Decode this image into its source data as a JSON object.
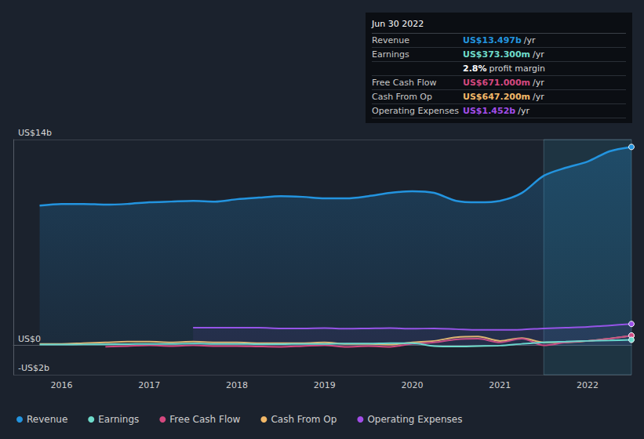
{
  "chart_data": {
    "type": "line",
    "xlim": [
      2015.45,
      2022.5
    ],
    "xticks": [
      2016,
      2017,
      2018,
      2019,
      2020,
      2021,
      2022
    ],
    "ylim": [
      -2,
      14
    ],
    "yticks": [
      {
        "value": -2,
        "label": "-US$2b"
      },
      {
        "value": 0,
        "label": "US$0"
      },
      {
        "value": 14,
        "label": "US$14b"
      }
    ],
    "grid": true,
    "legend": "lower left",
    "highlight_range": [
      2021.5,
      2022.5
    ],
    "series": [
      {
        "name": "Revenue",
        "color": "#2394df",
        "x": [
          2015.75,
          2016.0,
          2016.25,
          2016.5,
          2016.75,
          2017.0,
          2017.25,
          2017.5,
          2017.75,
          2018.0,
          2018.25,
          2018.5,
          2018.75,
          2019.0,
          2019.25,
          2019.5,
          2019.75,
          2020.0,
          2020.25,
          2020.5,
          2020.75,
          2021.0,
          2021.25,
          2021.5,
          2021.75,
          2022.0,
          2022.25,
          2022.5
        ],
        "values": [
          9.51,
          9.62,
          9.62,
          9.57,
          9.62,
          9.73,
          9.78,
          9.83,
          9.78,
          9.94,
          10.05,
          10.15,
          10.1,
          10.0,
          10.0,
          10.15,
          10.37,
          10.48,
          10.37,
          9.83,
          9.73,
          9.83,
          10.37,
          11.54,
          12.08,
          12.5,
          13.2,
          13.497
        ]
      },
      {
        "name": "Earnings",
        "color": "#6fdccb",
        "x": [
          2015.75,
          2016.0,
          2016.25,
          2016.5,
          2016.75,
          2017.0,
          2017.25,
          2017.5,
          2017.75,
          2018.0,
          2018.25,
          2018.5,
          2018.75,
          2019.0,
          2019.25,
          2019.5,
          2019.75,
          2020.0,
          2020.25,
          2020.5,
          2020.75,
          2021.0,
          2021.25,
          2021.5,
          2021.75,
          2022.0,
          2022.25,
          2022.5
        ],
        "values": [
          0.05,
          0.05,
          0.06,
          0.07,
          0.08,
          0.1,
          0.1,
          0.12,
          0.1,
          0.1,
          0.08,
          0.08,
          0.1,
          0.1,
          0.12,
          0.12,
          0.15,
          0.15,
          -0.05,
          -0.08,
          -0.05,
          -0.02,
          0.1,
          0.2,
          0.25,
          0.3,
          0.33,
          0.3733
        ]
      },
      {
        "name": "Free Cash Flow",
        "color": "#d4487f",
        "x": [
          2016.5,
          2016.75,
          2017.0,
          2017.25,
          2017.5,
          2017.75,
          2018.0,
          2018.25,
          2018.5,
          2018.75,
          2019.0,
          2019.25,
          2019.5,
          2019.75,
          2020.0,
          2020.25,
          2020.5,
          2020.75,
          2021.0,
          2021.25,
          2021.5,
          2021.75,
          2022.0,
          2022.25,
          2022.5
        ],
        "values": [
          -0.1,
          -0.05,
          0.0,
          -0.05,
          0.0,
          -0.05,
          -0.05,
          -0.08,
          -0.1,
          -0.05,
          0.0,
          -0.1,
          -0.05,
          -0.1,
          0.1,
          0.2,
          0.4,
          0.45,
          0.2,
          0.45,
          0.0,
          0.2,
          0.3,
          0.45,
          0.671
        ]
      },
      {
        "name": "Cash From Op",
        "color": "#f2b868",
        "x": [
          2015.75,
          2016.0,
          2016.25,
          2016.5,
          2016.75,
          2017.0,
          2017.25,
          2017.5,
          2017.75,
          2018.0,
          2018.25,
          2018.5,
          2018.75,
          2019.0,
          2019.25,
          2019.5,
          2019.75,
          2020.0,
          2020.25,
          2020.5,
          2020.75,
          2021.0,
          2021.25,
          2021.5,
          2021.75,
          2022.0,
          2022.25,
          2022.5
        ],
        "values": [
          0.1,
          0.1,
          0.15,
          0.2,
          0.25,
          0.25,
          0.2,
          0.25,
          0.2,
          0.2,
          0.15,
          0.15,
          0.15,
          0.2,
          0.1,
          0.1,
          0.05,
          0.2,
          0.3,
          0.55,
          0.6,
          0.3,
          0.5,
          0.2,
          0.2,
          0.3,
          0.45,
          0.6472
        ]
      },
      {
        "name": "Operating Expenses",
        "color": "#a24de8",
        "x": [
          2017.5,
          2017.75,
          2018.0,
          2018.25,
          2018.5,
          2018.75,
          2019.0,
          2019.25,
          2019.5,
          2019.75,
          2020.0,
          2020.25,
          2020.5,
          2020.75,
          2021.0,
          2021.25,
          2021.5,
          2021.75,
          2022.0,
          2022.25,
          2022.5
        ],
        "values": [
          1.2,
          1.2,
          1.2,
          1.2,
          1.15,
          1.15,
          1.17,
          1.13,
          1.15,
          1.17,
          1.13,
          1.15,
          1.1,
          1.05,
          1.05,
          1.07,
          1.15,
          1.2,
          1.25,
          1.35,
          1.452
        ]
      }
    ],
    "info_box": {
      "title": "Jun 30 2022",
      "rows": [
        {
          "label": "Revenue",
          "value": "US$13.497b",
          "unit": "/yr"
        },
        {
          "label": "Earnings",
          "value": "US$373.300m",
          "unit": "/yr"
        },
        {
          "value": "2.8%",
          "unit": "profit margin"
        },
        {
          "label": "Free Cash Flow",
          "value": "US$671.000m",
          "unit": "/yr"
        },
        {
          "label": "Cash From Op",
          "value": "US$647.200m",
          "unit": "/yr"
        },
        {
          "label": "Operating Expenses",
          "value": "US$1.452b",
          "unit": "/yr"
        }
      ]
    }
  }
}
